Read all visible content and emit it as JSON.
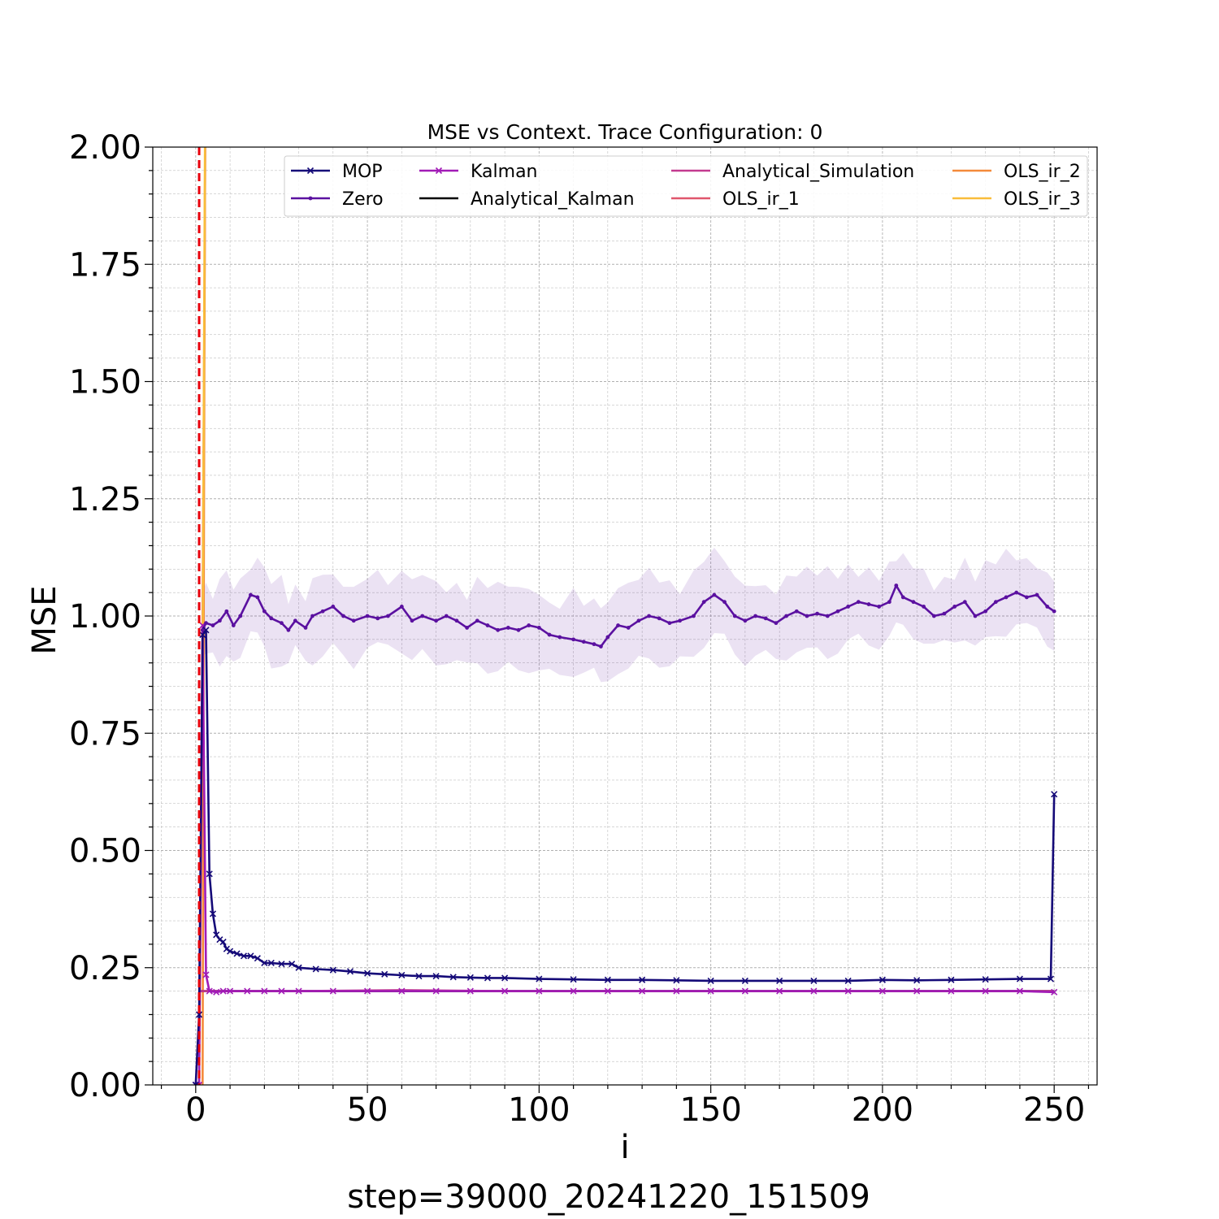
{
  "chart_data": {
    "type": "line",
    "title": "MSE vs Context. Trace Configuration: 0",
    "xlabel": "i",
    "ylabel": "MSE",
    "caption": "step=39000_20241220_151509",
    "xlim": [
      -12.5,
      262.5
    ],
    "ylim": [
      0,
      2.0
    ],
    "x_ticks": [
      0,
      50,
      100,
      150,
      200,
      250
    ],
    "y_ticks": [
      0.0,
      0.25,
      0.5,
      0.75,
      1.0,
      1.25,
      1.5,
      1.75,
      2.0
    ],
    "x_tick_labels": [
      "0",
      "50",
      "100",
      "150",
      "200",
      "250"
    ],
    "y_tick_labels": [
      "0.00",
      "0.25",
      "0.50",
      "0.75",
      "1.00",
      "1.25",
      "1.50",
      "1.75",
      "2.00"
    ],
    "grid": true,
    "legend_position": "top",
    "vline": {
      "x": 1,
      "color": "#e8000b",
      "style": "dashed"
    },
    "series": [
      {
        "name": "MOP",
        "color": "#150a78",
        "marker": "x",
        "points": [
          [
            0,
            0.0
          ],
          [
            1,
            0.15
          ],
          [
            2,
            0.96
          ],
          [
            3,
            0.97
          ],
          [
            4,
            0.45
          ],
          [
            5,
            0.365
          ],
          [
            6,
            0.32
          ],
          [
            7,
            0.31
          ],
          [
            8,
            0.305
          ],
          [
            9,
            0.29
          ],
          [
            10,
            0.285
          ],
          [
            12,
            0.28
          ],
          [
            14,
            0.275
          ],
          [
            16,
            0.275
          ],
          [
            18,
            0.27
          ],
          [
            20,
            0.26
          ],
          [
            22,
            0.26
          ],
          [
            25,
            0.258
          ],
          [
            28,
            0.258
          ],
          [
            30,
            0.25
          ],
          [
            35,
            0.247
          ],
          [
            40,
            0.245
          ],
          [
            45,
            0.242
          ],
          [
            50,
            0.238
          ],
          [
            55,
            0.236
          ],
          [
            60,
            0.234
          ],
          [
            65,
            0.232
          ],
          [
            70,
            0.232
          ],
          [
            75,
            0.23
          ],
          [
            80,
            0.229
          ],
          [
            85,
            0.228
          ],
          [
            90,
            0.228
          ],
          [
            100,
            0.226
          ],
          [
            110,
            0.225
          ],
          [
            120,
            0.224
          ],
          [
            130,
            0.224
          ],
          [
            140,
            0.223
          ],
          [
            150,
            0.222
          ],
          [
            160,
            0.222
          ],
          [
            170,
            0.222
          ],
          [
            180,
            0.222
          ],
          [
            190,
            0.222
          ],
          [
            200,
            0.224
          ],
          [
            210,
            0.223
          ],
          [
            220,
            0.224
          ],
          [
            230,
            0.225
          ],
          [
            240,
            0.226
          ],
          [
            249,
            0.226
          ],
          [
            250,
            0.62
          ]
        ]
      },
      {
        "name": "Zero",
        "color": "#5b11a0",
        "marker": "dot",
        "band": 0.08,
        "points": [
          [
            2,
            0.97
          ],
          [
            3,
            0.985
          ],
          [
            5,
            0.98
          ],
          [
            7,
            0.99
          ],
          [
            9,
            1.01
          ],
          [
            11,
            0.98
          ],
          [
            13,
            1.0
          ],
          [
            16,
            1.045
          ],
          [
            18,
            1.04
          ],
          [
            20,
            1.01
          ],
          [
            22,
            0.995
          ],
          [
            25,
            0.985
          ],
          [
            27,
            0.97
          ],
          [
            29,
            0.99
          ],
          [
            32,
            0.975
          ],
          [
            34,
            1.0
          ],
          [
            37,
            1.01
          ],
          [
            40,
            1.02
          ],
          [
            43,
            1.0
          ],
          [
            46,
            0.99
          ],
          [
            50,
            1.0
          ],
          [
            53,
            0.995
          ],
          [
            56,
            1.0
          ],
          [
            60,
            1.02
          ],
          [
            63,
            0.99
          ],
          [
            66,
            1.0
          ],
          [
            70,
            0.99
          ],
          [
            73,
            1.0
          ],
          [
            76,
            0.99
          ],
          [
            79,
            0.975
          ],
          [
            82,
            0.99
          ],
          [
            85,
            0.98
          ],
          [
            88,
            0.97
          ],
          [
            91,
            0.975
          ],
          [
            94,
            0.97
          ],
          [
            97,
            0.98
          ],
          [
            100,
            0.975
          ],
          [
            103,
            0.96
          ],
          [
            106,
            0.955
          ],
          [
            110,
            0.95
          ],
          [
            113,
            0.945
          ],
          [
            116,
            0.94
          ],
          [
            118,
            0.935
          ],
          [
            120,
            0.955
          ],
          [
            123,
            0.98
          ],
          [
            126,
            0.975
          ],
          [
            129,
            0.99
          ],
          [
            132,
            1.0
          ],
          [
            135,
            0.995
          ],
          [
            138,
            0.985
          ],
          [
            141,
            0.99
          ],
          [
            145,
            1.0
          ],
          [
            148,
            1.03
          ],
          [
            151,
            1.045
          ],
          [
            154,
            1.03
          ],
          [
            157,
            1.0
          ],
          [
            160,
            0.99
          ],
          [
            163,
            1.0
          ],
          [
            166,
            0.995
          ],
          [
            169,
            0.985
          ],
          [
            172,
            1.0
          ],
          [
            175,
            1.01
          ],
          [
            178,
            1.0
          ],
          [
            181,
            1.005
          ],
          [
            184,
            1.0
          ],
          [
            187,
            1.01
          ],
          [
            190,
            1.02
          ],
          [
            193,
            1.03
          ],
          [
            196,
            1.025
          ],
          [
            199,
            1.02
          ],
          [
            202,
            1.03
          ],
          [
            204,
            1.065
          ],
          [
            206,
            1.04
          ],
          [
            209,
            1.03
          ],
          [
            212,
            1.02
          ],
          [
            215,
            1.0
          ],
          [
            218,
            1.005
          ],
          [
            221,
            1.02
          ],
          [
            224,
            1.03
          ],
          [
            227,
            1.0
          ],
          [
            230,
            1.01
          ],
          [
            233,
            1.03
          ],
          [
            236,
            1.04
          ],
          [
            239,
            1.05
          ],
          [
            242,
            1.04
          ],
          [
            245,
            1.045
          ],
          [
            248,
            1.02
          ],
          [
            250,
            1.01
          ]
        ]
      },
      {
        "name": "Kalman",
        "color": "#a11bb6",
        "marker": "x",
        "points": [
          [
            0,
            0.0
          ],
          [
            1,
            0.0
          ],
          [
            2,
            0.98
          ],
          [
            3,
            0.235
          ],
          [
            4,
            0.2
          ],
          [
            6,
            0.198
          ],
          [
            8,
            0.2
          ],
          [
            10,
            0.2
          ],
          [
            15,
            0.2
          ],
          [
            20,
            0.2
          ],
          [
            25,
            0.2
          ],
          [
            30,
            0.2
          ],
          [
            40,
            0.2
          ],
          [
            50,
            0.2
          ],
          [
            60,
            0.2
          ],
          [
            70,
            0.2
          ],
          [
            80,
            0.2
          ],
          [
            90,
            0.2
          ],
          [
            100,
            0.2
          ],
          [
            110,
            0.2
          ],
          [
            120,
            0.2
          ],
          [
            130,
            0.2
          ],
          [
            140,
            0.2
          ],
          [
            150,
            0.2
          ],
          [
            160,
            0.2
          ],
          [
            170,
            0.2
          ],
          [
            180,
            0.2
          ],
          [
            190,
            0.2
          ],
          [
            200,
            0.2
          ],
          [
            210,
            0.2
          ],
          [
            220,
            0.2
          ],
          [
            230,
            0.2
          ],
          [
            240,
            0.2
          ],
          [
            250,
            0.198
          ]
        ]
      },
      {
        "name": "Analytical_Kalman",
        "color": "#000000",
        "marker": "none",
        "points": [
          [
            1,
            0.2
          ],
          [
            250,
            0.2
          ]
        ]
      },
      {
        "name": "Analytical_Simulation",
        "color": "#c33a8f",
        "marker": "none",
        "points": [
          [
            1,
            0.2
          ],
          [
            2,
            0.2
          ],
          [
            10,
            0.2
          ],
          [
            30,
            0.2
          ],
          [
            60,
            0.202
          ],
          [
            90,
            0.2
          ],
          [
            120,
            0.2
          ],
          [
            150,
            0.2
          ],
          [
            180,
            0.2
          ],
          [
            210,
            0.2
          ],
          [
            240,
            0.2
          ],
          [
            250,
            0.2
          ]
        ]
      },
      {
        "name": "OLS_ir_1",
        "color": "#e0566c",
        "marker": "none",
        "points": [
          [
            1,
            0.0
          ],
          [
            2,
            1.0
          ],
          [
            2.5,
            1.6
          ],
          [
            3,
            2.4
          ]
        ]
      },
      {
        "name": "OLS_ir_2",
        "color": "#f48a3a",
        "marker": "none",
        "points": [
          [
            2,
            0.0
          ],
          [
            2.5,
            1.5
          ],
          [
            3,
            2.5
          ]
        ]
      },
      {
        "name": "OLS_ir_3",
        "color": "#f9bd3a",
        "marker": "none",
        "points": [
          [
            2,
            0.9
          ],
          [
            2.5,
            1.7
          ],
          [
            3,
            2.5
          ]
        ]
      }
    ]
  }
}
